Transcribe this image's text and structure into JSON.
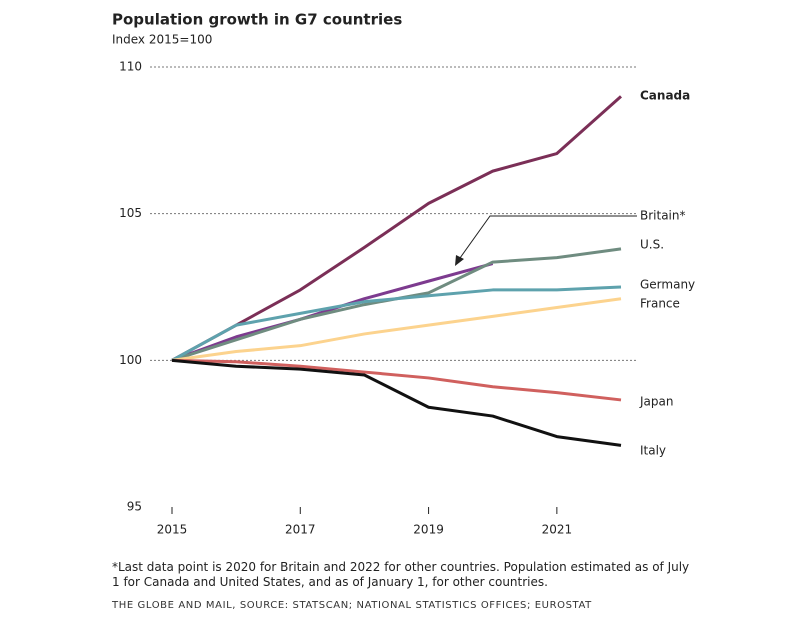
{
  "chart_data": {
    "type": "line",
    "title": "Population growth in G7 countries",
    "subtitle": "Index 2015=100",
    "x": [
      2015,
      2016,
      2017,
      2018,
      2019,
      2020,
      2021,
      2022
    ],
    "xlim": [
      2015,
      2022
    ],
    "xticks": [
      2015,
      2017,
      2019,
      2021
    ],
    "ylim": [
      95,
      110
    ],
    "yticks": [
      95,
      100,
      105,
      110
    ],
    "grid": true,
    "series": [
      {
        "name": "Canada",
        "color": "#7b2f57",
        "values": [
          100,
          101.2,
          102.4,
          103.85,
          105.35,
          106.45,
          107.05,
          109.0
        ]
      },
      {
        "name": "Britain*",
        "color": "#7d3b8f",
        "values": [
          100,
          100.8,
          101.4,
          102.1,
          102.7,
          103.3,
          null,
          null
        ]
      },
      {
        "name": "U.S.",
        "color": "#6f8c80",
        "values": [
          100,
          100.7,
          101.4,
          101.9,
          102.3,
          103.35,
          103.5,
          103.8
        ]
      },
      {
        "name": "Germany",
        "color": "#5ea2ad",
        "values": [
          100,
          101.2,
          101.6,
          102.0,
          102.2,
          102.4,
          102.4,
          102.5
        ]
      },
      {
        "name": "France",
        "color": "#fcd38e",
        "values": [
          100,
          100.3,
          100.5,
          100.9,
          101.2,
          101.5,
          101.8,
          102.1
        ]
      },
      {
        "name": "Japan",
        "color": "#d0605e",
        "values": [
          100,
          99.95,
          99.8,
          99.6,
          99.4,
          99.1,
          98.9,
          98.65
        ]
      },
      {
        "name": "Italy",
        "color": "#111111",
        "values": [
          100,
          99.8,
          99.7,
          99.5,
          98.4,
          98.1,
          97.4,
          97.1
        ]
      }
    ],
    "footnote": "*Last data point is 2020 for Britain and 2022 for other countries. Population estimated as of July 1 for Canada and United States, and as of January 1, for other countries.",
    "source": "THE GLOBE AND MAIL, SOURCE: STATSCAN; NATIONAL STATISTICS OFFICES; EUROSTAT"
  }
}
